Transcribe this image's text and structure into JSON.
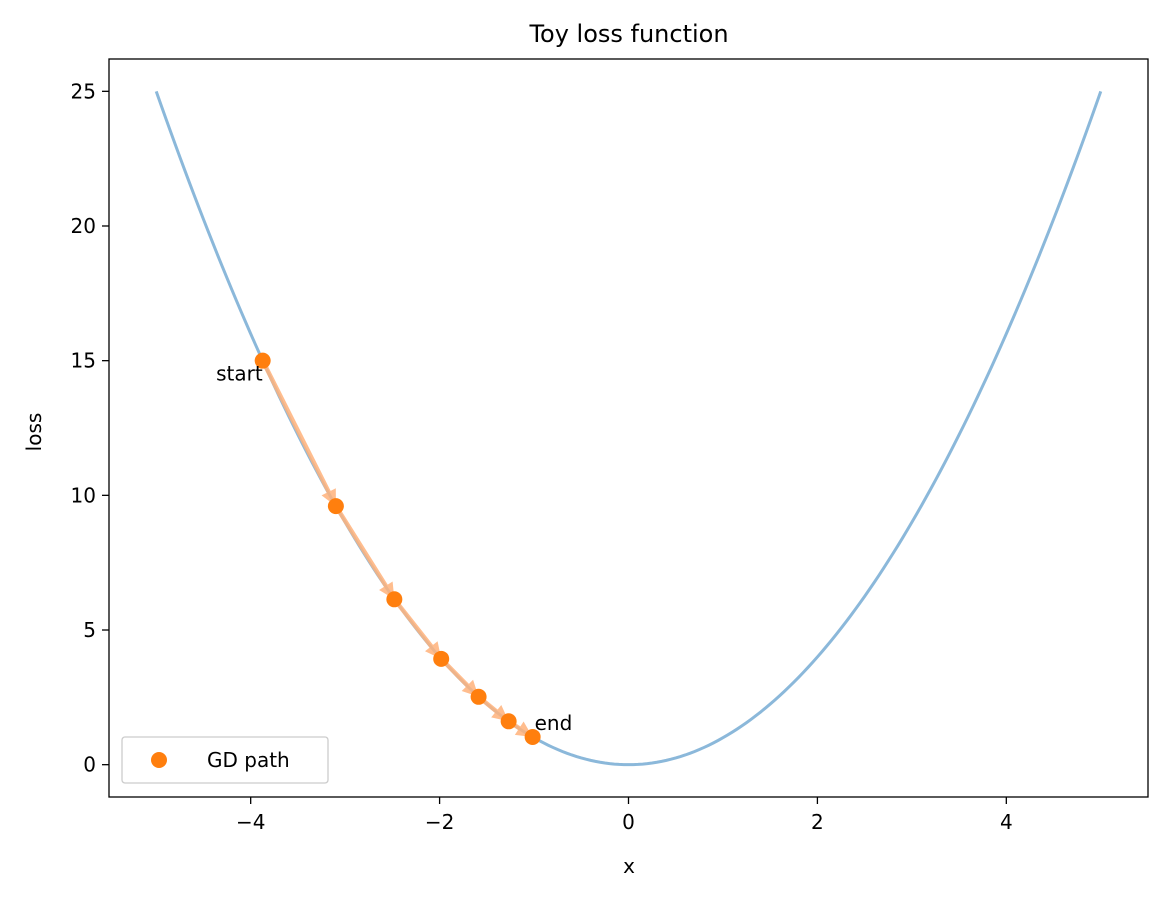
{
  "chart_data": {
    "type": "line",
    "title": "Toy loss function",
    "xlabel": "x",
    "ylabel": "loss",
    "xlim": [
      -5.5,
      5.5
    ],
    "ylim": [
      -1.2,
      26.2
    ],
    "xticks": [
      -4,
      -2,
      0,
      2,
      4
    ],
    "xtick_labels": [
      "−4",
      "−2",
      "0",
      "2",
      "4"
    ],
    "yticks": [
      0,
      5,
      10,
      15,
      20,
      25
    ],
    "ytick_labels": [
      "0",
      "5",
      "10",
      "15",
      "20",
      "25"
    ],
    "grid": false,
    "legend_position": "lower-left",
    "curve": {
      "function": "x^2",
      "x_range": [
        -5,
        5
      ],
      "color": "#8bb8da"
    },
    "series": [
      {
        "name": "GD path",
        "marker": "circle",
        "color": "#ff7f0e",
        "x": [
          -3.873,
          -3.098,
          -2.479,
          -1.983,
          -1.587,
          -1.269,
          -1.015
        ],
        "y": [
          15.0,
          9.6,
          6.14,
          3.93,
          2.52,
          1.61,
          1.03
        ]
      }
    ],
    "arrow_color": "#ffb27a",
    "annotations": [
      {
        "text": "start",
        "point_index": 0,
        "anchor": "end"
      },
      {
        "text": "end",
        "point_index": 6,
        "anchor": "start"
      }
    ]
  }
}
